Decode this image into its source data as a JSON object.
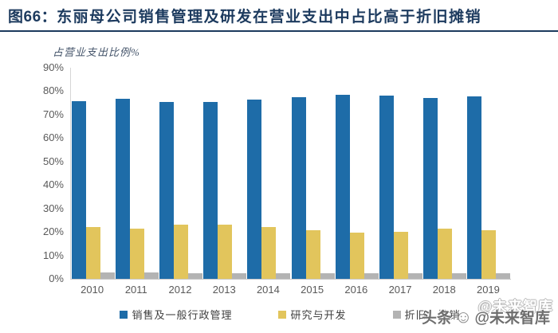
{
  "figure_label": "图66：",
  "figure_title": "东丽母公司销售管理及研发在营业支出中占比高于折旧摊销",
  "chart_data": {
    "type": "bar",
    "title": "东丽母公司销售管理及研发在营业支出中占比高于折旧摊销",
    "ylabel": "占营业支出比例%",
    "xlabel": "",
    "categories": [
      "2010",
      "2011",
      "2012",
      "2013",
      "2014",
      "2015",
      "2016",
      "2017",
      "2018",
      "2019"
    ],
    "series": [
      {
        "name": "销售及一般行政管理",
        "color": "#1e6ca8",
        "values": [
          75.8,
          76.8,
          75.5,
          75.5,
          76.3,
          77.5,
          78.5,
          78.0,
          77.0,
          77.7
        ]
      },
      {
        "name": "研究与开发",
        "color": "#e2c55c",
        "values": [
          22.2,
          21.5,
          23.0,
          23.0,
          22.0,
          20.8,
          19.7,
          20.1,
          21.4,
          20.7
        ]
      },
      {
        "name": "折旧、摊销",
        "color": "#b3b3b3",
        "values": [
          2.8,
          2.7,
          2.5,
          2.5,
          2.5,
          2.3,
          2.5,
          2.5,
          2.3,
          2.3
        ]
      }
    ],
    "ylim": [
      0,
      90
    ],
    "ytick_step": 10,
    "yticks": [
      "0%",
      "10%",
      "20%",
      "30%",
      "40%",
      "50%",
      "60%",
      "70%",
      "80%",
      "90%"
    ],
    "grid": false,
    "legend_position": "bottom"
  },
  "watermark": {
    "platform": "头条",
    "logo": "toutiao-smiley",
    "handle": "@未来智库"
  }
}
